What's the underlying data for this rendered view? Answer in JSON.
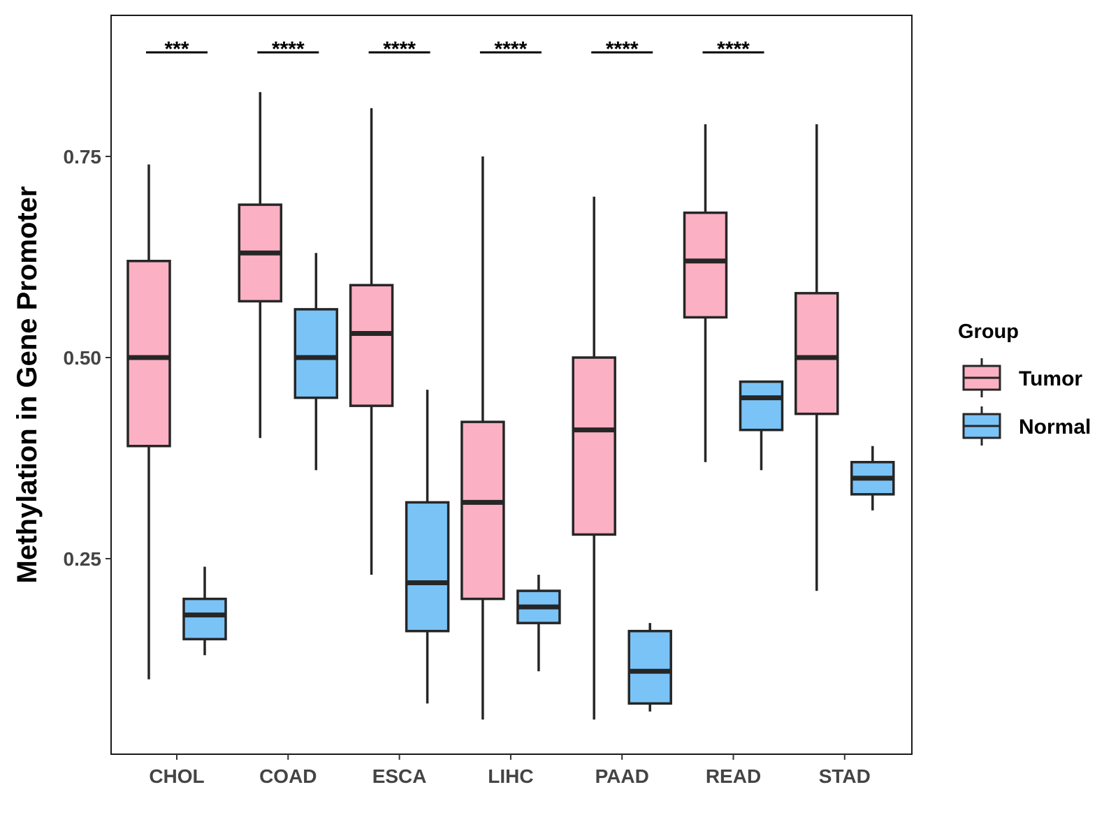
{
  "chart_data": {
    "type": "boxplot",
    "ylabel": "Methylation in Gene Promoter",
    "xlabel": "",
    "ylim": [
      0.01,
      0.93
    ],
    "yticks": [
      0.25,
      0.5,
      0.75
    ],
    "ytick_labels": [
      "0.25",
      "0.50",
      "0.75"
    ],
    "categories": [
      "CHOL",
      "COAD",
      "ESCA",
      "LIHC",
      "PAAD",
      "READ",
      "STAD"
    ],
    "legend": {
      "title": "Group",
      "position": "right"
    },
    "series": [
      {
        "name": "Tumor",
        "color": "#FBB1C3",
        "boxes": [
          {
            "min": 0.1,
            "q1": 0.39,
            "median": 0.5,
            "q3": 0.62,
            "max": 0.74
          },
          {
            "min": 0.4,
            "q1": 0.57,
            "median": 0.63,
            "q3": 0.69,
            "max": 0.83
          },
          {
            "min": 0.23,
            "q1": 0.44,
            "median": 0.53,
            "q3": 0.59,
            "max": 0.81
          },
          {
            "min": 0.05,
            "q1": 0.2,
            "median": 0.32,
            "q3": 0.42,
            "max": 0.75
          },
          {
            "min": 0.05,
            "q1": 0.28,
            "median": 0.41,
            "q3": 0.5,
            "max": 0.7
          },
          {
            "min": 0.37,
            "q1": 0.55,
            "median": 0.62,
            "q3": 0.68,
            "max": 0.79
          },
          {
            "min": 0.21,
            "q1": 0.43,
            "median": 0.5,
            "q3": 0.58,
            "max": 0.79
          }
        ]
      },
      {
        "name": "Normal",
        "color": "#7AC3F7",
        "boxes": [
          {
            "min": 0.13,
            "q1": 0.15,
            "median": 0.18,
            "q3": 0.2,
            "max": 0.24
          },
          {
            "min": 0.36,
            "q1": 0.45,
            "median": 0.5,
            "q3": 0.56,
            "max": 0.63
          },
          {
            "min": 0.07,
            "q1": 0.16,
            "median": 0.22,
            "q3": 0.32,
            "max": 0.46
          },
          {
            "min": 0.11,
            "q1": 0.17,
            "median": 0.19,
            "q3": 0.21,
            "max": 0.23
          },
          {
            "min": 0.06,
            "q1": 0.07,
            "median": 0.11,
            "q3": 0.16,
            "max": 0.17
          },
          {
            "min": 0.36,
            "q1": 0.41,
            "median": 0.45,
            "q3": 0.47,
            "max": 0.47
          },
          {
            "min": 0.31,
            "q1": 0.33,
            "median": 0.35,
            "q3": 0.37,
            "max": 0.39
          }
        ]
      }
    ],
    "significance": [
      "***",
      "****",
      "****",
      "****",
      "****",
      "****",
      ""
    ]
  }
}
